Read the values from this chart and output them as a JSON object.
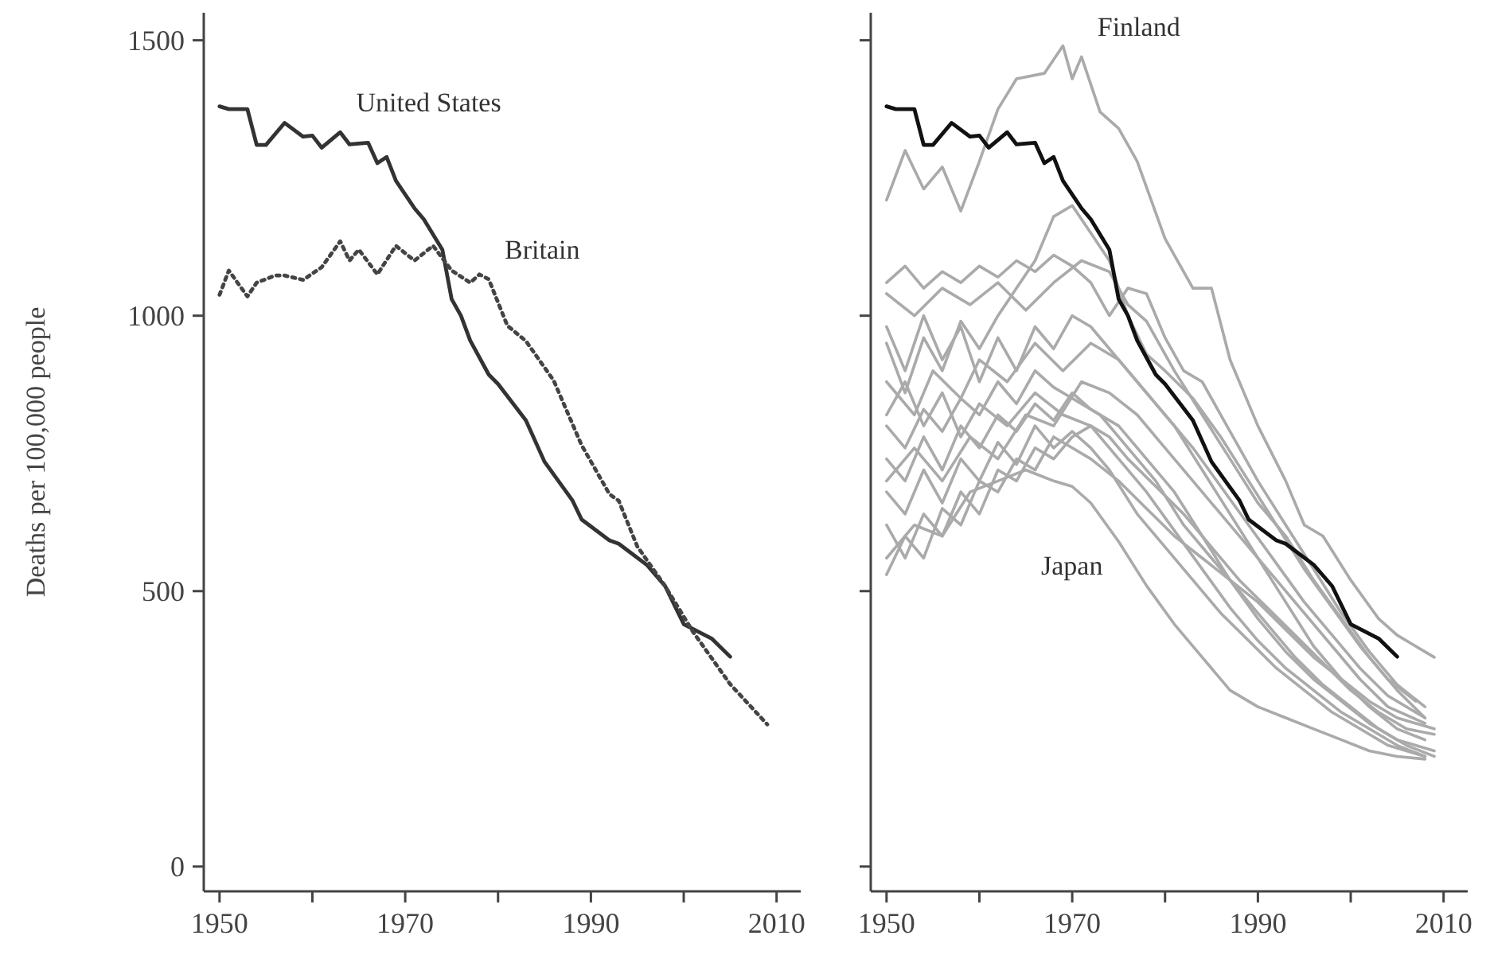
{
  "chart_data": [
    {
      "type": "line",
      "ylabel": "Deaths per 100,000 people",
      "xlim": [
        1948.3,
        2012.6
      ],
      "ylim": [
        -45,
        1550
      ],
      "xticks": [
        1950,
        {
          "value": 1960,
          "label": null
        },
        1970,
        {
          "value": 1980,
          "label": null
        },
        1990,
        {
          "value": 2000,
          "label": null
        },
        2010
      ],
      "yticks": [
        0,
        500,
        1000,
        1500
      ],
      "series": [
        {
          "name": "United States",
          "color": "#333333",
          "line_style": "solid",
          "x": [
            1950,
            1951,
            1953,
            1954,
            1955,
            1957,
            1959,
            1960,
            1961,
            1963,
            1964,
            1966,
            1967,
            1968,
            1969,
            1971,
            1972,
            1974,
            1975,
            1976,
            1977,
            1979,
            1980,
            1983,
            1985,
            1988,
            1989,
            1992,
            1993,
            1996,
            1998,
            2000,
            2003,
            2005
          ],
          "values": [
            1380,
            1375,
            1375,
            1310,
            1310,
            1350,
            1325,
            1327,
            1305,
            1333,
            1311,
            1314,
            1277,
            1288,
            1245,
            1195,
            1175,
            1120,
            1030,
            1000,
            955,
            893,
            876,
            810,
            735,
            665,
            630,
            592,
            586,
            548,
            509,
            440,
            414,
            381
          ]
        },
        {
          "name": "Britain",
          "color": "#444444",
          "line_style": "dotted",
          "x": [
            1950,
            1951,
            1953,
            1954,
            1956,
            1957,
            1959,
            1961,
            1963,
            1964,
            1965,
            1967,
            1969,
            1971,
            1973,
            1975,
            1977,
            1978,
            1979,
            1981,
            1983,
            1986,
            1989,
            1992,
            1993,
            1995,
            1998,
            2001,
            2005,
            2009
          ],
          "values": [
            1038,
            1082,
            1035,
            1060,
            1073,
            1073,
            1065,
            1088,
            1135,
            1100,
            1120,
            1075,
            1127,
            1100,
            1127,
            1082,
            1060,
            1075,
            1066,
            982,
            954,
            882,
            765,
            676,
            664,
            581,
            509,
            426,
            331,
            258
          ]
        }
      ]
    },
    {
      "type": "line",
      "xlim": [
        1948.3,
        2012.6
      ],
      "ylim": [
        -45,
        1550
      ],
      "tick_labels": "x",
      "xticks": [
        1950,
        {
          "value": 1960,
          "label": null
        },
        1970,
        {
          "value": 1980,
          "label": null
        },
        1990,
        {
          "value": 2000,
          "label": null
        },
        2010
      ],
      "yticks": [
        0,
        500,
        1000,
        1500
      ],
      "series": [
        {
          "color": "#aaaaaa",
          "x": [
            1950,
            1952,
            1954,
            1956,
            1958,
            1960,
            1962,
            1964,
            1966,
            1968,
            1970,
            1972,
            1974,
            1976,
            1978,
            1980,
            1982,
            1984,
            1986,
            1988,
            1990,
            1993,
            1996,
            1999,
            2002,
            2005,
            2008
          ],
          "values": [
            1060,
            1090,
            1050,
            1080,
            1060,
            1090,
            1070,
            1100,
            1080,
            1110,
            1090,
            1060,
            1000,
            1050,
            1040,
            960,
            900,
            880,
            820,
            760,
            700,
            620,
            540,
            460,
            390,
            330,
            290
          ]
        },
        {
          "color": "#aaaaaa",
          "x": [
            1950,
            1953,
            1956,
            1959,
            1962,
            1965,
            1968,
            1971,
            1974,
            1976,
            1978,
            1981,
            1984,
            1987,
            1990,
            1993,
            1996,
            1999,
            2002,
            2005,
            2008
          ],
          "values": [
            1040,
            1000,
            1050,
            1020,
            1060,
            1010,
            1060,
            1100,
            1080,
            1020,
            990,
            900,
            820,
            740,
            660,
            600,
            520,
            450,
            380,
            320,
            270
          ]
        },
        {
          "color": "#aaaaaa",
          "x": [
            1950,
            1952,
            1954,
            1956,
            1958,
            1960,
            1962,
            1964,
            1966,
            1968,
            1970,
            1972,
            1974,
            1976,
            1978,
            1980,
            1983,
            1986,
            1989,
            1992,
            1995,
            1998,
            2001,
            2004,
            2007
          ],
          "values": [
            950,
            860,
            960,
            900,
            990,
            940,
            1000,
            1050,
            1100,
            1180,
            1200,
            1150,
            1100,
            1000,
            930,
            900,
            850,
            780,
            700,
            620,
            540,
            470,
            400,
            340,
            300
          ]
        },
        {
          "color": "#aaaaaa",
          "x": [
            1950,
            1953,
            1955,
            1958,
            1960,
            1963,
            1966,
            1969,
            1972,
            1975,
            1978,
            1981,
            1984,
            1987,
            1990,
            1993,
            1996,
            1999,
            2002,
            2005,
            2008
          ],
          "values": [
            880,
            820,
            900,
            850,
            920,
            880,
            950,
            900,
            950,
            920,
            860,
            800,
            720,
            640,
            560,
            480,
            400,
            340,
            290,
            250,
            230
          ]
        },
        {
          "color": "#aaaaaa",
          "x": [
            1950,
            1952,
            1954,
            1956,
            1958,
            1960,
            1962,
            1964,
            1966,
            1968,
            1970,
            1973,
            1976,
            1979,
            1982,
            1985,
            1988,
            1991,
            1994,
            1997,
            2000,
            2003,
            2006,
            2009
          ],
          "values": [
            800,
            760,
            830,
            790,
            850,
            820,
            880,
            840,
            900,
            870,
            850,
            820,
            760,
            700,
            620,
            560,
            500,
            440,
            380,
            330,
            290,
            250,
            220,
            200
          ]
        },
        {
          "color": "#aaaaaa",
          "x": [
            1950,
            1952,
            1954,
            1956,
            1958,
            1960,
            1962,
            1964,
            1966,
            1968,
            1970,
            1972,
            1975,
            1978,
            1981,
            1984,
            1987,
            1990,
            1993,
            1996,
            1999,
            2002,
            2005,
            2009
          ],
          "values": [
            740,
            700,
            780,
            720,
            800,
            760,
            820,
            790,
            840,
            810,
            860,
            830,
            800,
            740,
            680,
            600,
            520,
            450,
            390,
            340,
            300,
            260,
            230,
            210
          ]
        },
        {
          "color": "#aaaaaa",
          "x": [
            1950,
            1952,
            1954,
            1956,
            1958,
            1960,
            1962,
            1964,
            1966,
            1968,
            1970,
            1972,
            1974,
            1977,
            1980,
            1983,
            1986,
            1989,
            1992,
            1995,
            1998,
            2001,
            2004,
            2008
          ],
          "values": [
            680,
            640,
            720,
            660,
            740,
            700,
            770,
            730,
            800,
            760,
            790,
            760,
            720,
            640,
            580,
            520,
            460,
            410,
            360,
            320,
            280,
            250,
            220,
            200
          ]
        },
        {
          "color": "#aaaaaa",
          "x": [
            1950,
            1952,
            1954,
            1956,
            1958,
            1960,
            1962,
            1964,
            1966,
            1968,
            1970,
            1972,
            1974,
            1976,
            1979,
            1982,
            1985,
            1988,
            1991,
            1994,
            1997,
            2000,
            2003,
            2006,
            2009
          ],
          "values": [
            620,
            560,
            640,
            600,
            680,
            640,
            720,
            700,
            760,
            740,
            780,
            800,
            780,
            740,
            690,
            640,
            580,
            520,
            470,
            420,
            370,
            320,
            280,
            250,
            240
          ]
        },
        {
          "color": "#aaaaaa",
          "x": [
            1950,
            1952,
            1954,
            1956,
            1958,
            1960,
            1962,
            1964,
            1966,
            1968,
            1970,
            1972,
            1975,
            1978,
            1981,
            1984,
            1987,
            1990,
            1993,
            1996,
            1999,
            2002,
            2005,
            2009
          ],
          "values": [
            530,
            600,
            560,
            650,
            620,
            700,
            680,
            740,
            720,
            780,
            760,
            740,
            700,
            650,
            600,
            560,
            520,
            480,
            430,
            380,
            340,
            300,
            270,
            250
          ]
        },
        {
          "color": "#aaaaaa",
          "x": [
            1950,
            1952,
            1954,
            1956,
            1958,
            1960,
            1962,
            1964,
            1966,
            1968,
            1970,
            1972,
            1974,
            1977,
            1980,
            1983,
            1986,
            1989,
            1992,
            1995,
            1998,
            2001,
            2004,
            2008
          ],
          "values": [
            980,
            900,
            1000,
            920,
            980,
            880,
            960,
            900,
            980,
            940,
            1000,
            980,
            940,
            880,
            820,
            760,
            690,
            620,
            550,
            480,
            420,
            360,
            310,
            270
          ]
        },
        {
          "color": "#aaaaaa",
          "x": [
            1950,
            1953,
            1956,
            1959,
            1962,
            1965,
            1968,
            1971,
            1974,
            1977,
            1980,
            1983,
            1986,
            1989,
            1992,
            1995,
            1998,
            2001,
            2004,
            2008
          ],
          "values": [
            700,
            760,
            700,
            780,
            740,
            820,
            800,
            880,
            860,
            820,
            760,
            700,
            640,
            580,
            520,
            460,
            400,
            340,
            290,
            260
          ]
        },
        {
          "color": "#aaaaaa",
          "x": [
            1950,
            1952,
            1954,
            1956,
            1958,
            1960,
            1963,
            1966,
            1969,
            1972,
            1975,
            1978,
            1981,
            1984,
            1987,
            1990,
            1993,
            1996,
            1999,
            2002,
            2005,
            2008
          ],
          "values": [
            820,
            880,
            800,
            860,
            780,
            840,
            800,
            860,
            820,
            800,
            740,
            680,
            610,
            540,
            470,
            410,
            360,
            320,
            280,
            250,
            220,
            200
          ]
        },
        {
          "name": "Japan",
          "color": "#aaaaaa",
          "x": [
            1950,
            1953,
            1956,
            1959,
            1962,
            1965,
            1968,
            1970,
            1972,
            1975,
            1978,
            1981,
            1984,
            1987,
            1990,
            1993,
            1996,
            1999,
            2002,
            2005,
            2008
          ],
          "values": [
            560,
            620,
            600,
            680,
            700,
            720,
            700,
            690,
            660,
            590,
            510,
            440,
            380,
            320,
            290,
            270,
            250,
            230,
            210,
            200,
            195
          ]
        },
        {
          "name": "Finland",
          "color": "#aaaaaa",
          "x": [
            1950,
            1952,
            1954,
            1956,
            1958,
            1960,
            1962,
            1964,
            1967,
            1969,
            1970,
            1971,
            1973,
            1975,
            1977,
            1980,
            1983,
            1985,
            1987,
            1990,
            1993,
            1995,
            1997,
            2000,
            2003,
            2005,
            2007,
            2009
          ],
          "values": [
            1210,
            1300,
            1230,
            1270,
            1190,
            1280,
            1375,
            1430,
            1440,
            1490,
            1430,
            1470,
            1370,
            1340,
            1280,
            1140,
            1050,
            1050,
            920,
            800,
            700,
            620,
            600,
            520,
            450,
            420,
            400,
            380
          ]
        },
        {
          "color": "#111111",
          "x": [
            1950,
            1951,
            1953,
            1954,
            1955,
            1957,
            1959,
            1960,
            1961,
            1963,
            1964,
            1966,
            1967,
            1968,
            1969,
            1971,
            1972,
            1974,
            1975,
            1976,
            1977,
            1979,
            1980,
            1983,
            1985,
            1988,
            1989,
            1992,
            1993,
            1996,
            1998,
            2000,
            2003,
            2005
          ],
          "values": [
            1380,
            1375,
            1375,
            1310,
            1310,
            1350,
            1325,
            1327,
            1305,
            1333,
            1311,
            1314,
            1277,
            1288,
            1245,
            1195,
            1175,
            1120,
            1030,
            1000,
            955,
            893,
            876,
            810,
            735,
            665,
            630,
            592,
            586,
            548,
            509,
            440,
            414,
            381
          ]
        }
      ]
    }
  ]
}
